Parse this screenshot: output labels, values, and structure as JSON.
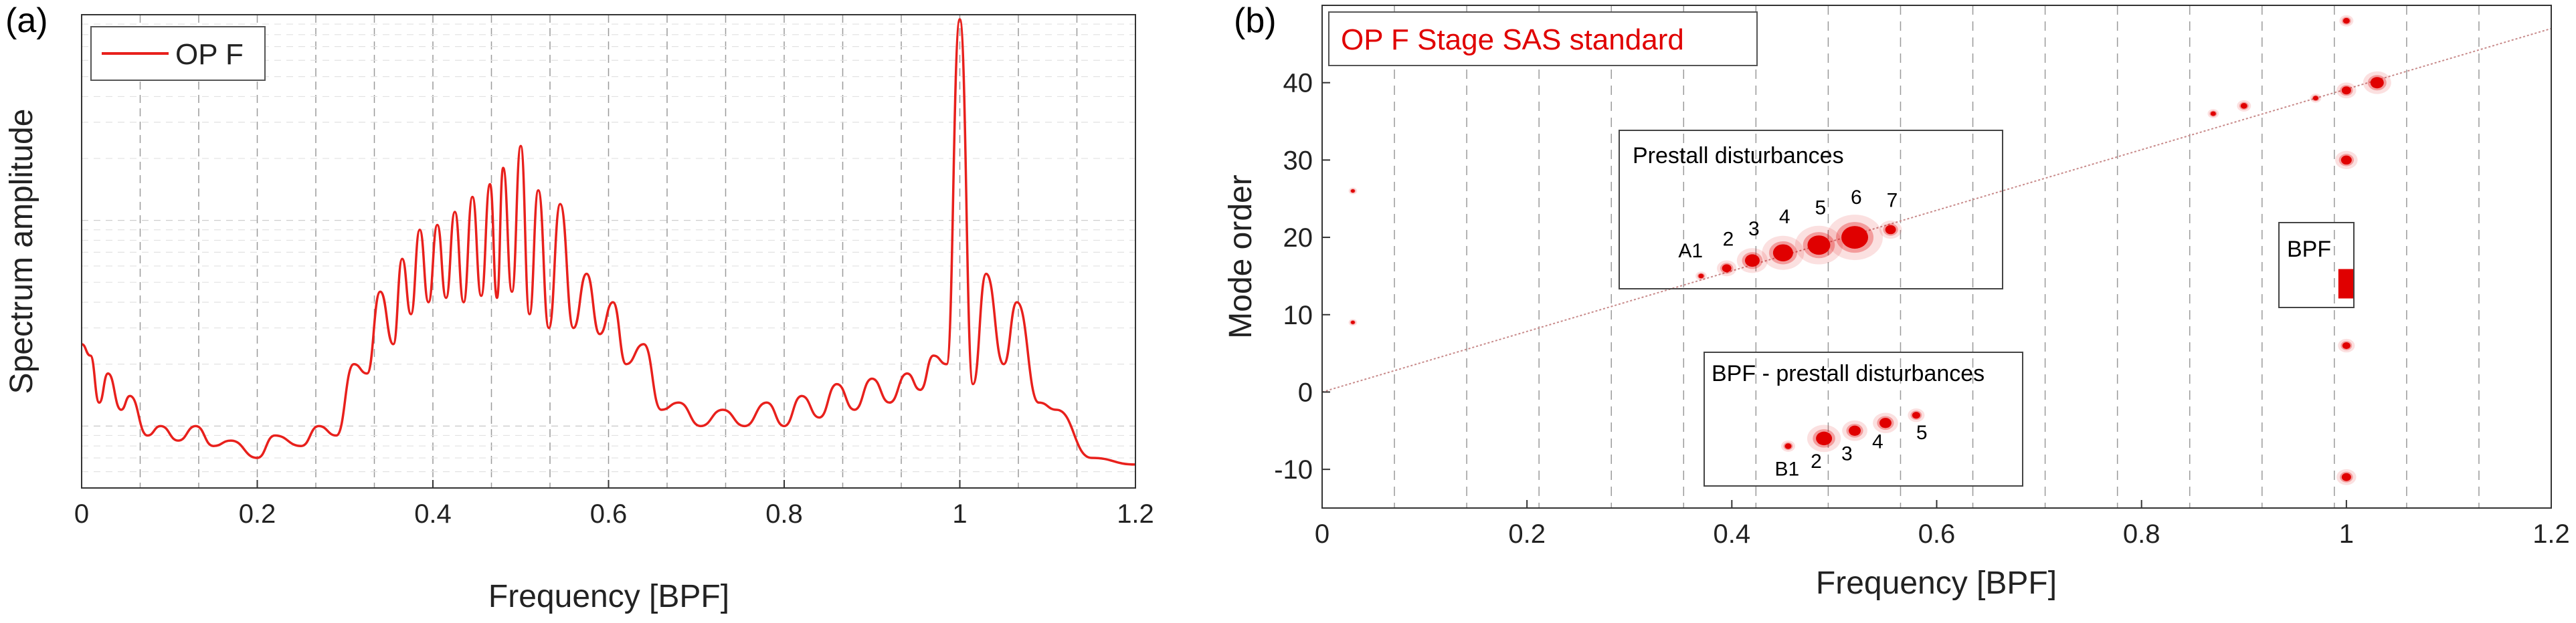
{
  "colors": {
    "series": "#e8201c",
    "mode_marker": "#e00000",
    "grid": "#b8b8b8",
    "axis": "#333333"
  },
  "chart_data": [
    {
      "panel_label": "(a)",
      "type": "line",
      "xlabel": "Frequency [BPF]",
      "ylabel": "Spectrum amplitude",
      "xlim": [
        0,
        1.2
      ],
      "yscale": "log",
      "ylim": [
        0.05,
        10
      ],
      "xticks": [
        "0",
        "0.2",
        "0.4",
        "0.6",
        "0.8",
        "1",
        "1.2"
      ],
      "grid": true,
      "legend": {
        "position": "top-left",
        "entries": [
          "OP F"
        ]
      },
      "series": [
        {
          "name": "OP F",
          "peaks": [
            {
              "x": 0.01,
              "y": 0.22
            },
            {
              "x": 0.03,
              "y": 0.18
            },
            {
              "x": 0.055,
              "y": 0.14
            },
            {
              "x": 0.09,
              "y": 0.1
            },
            {
              "x": 0.13,
              "y": 0.1
            },
            {
              "x": 0.17,
              "y": 0.085
            },
            {
              "x": 0.22,
              "y": 0.09
            },
            {
              "x": 0.27,
              "y": 0.1
            },
            {
              "x": 0.31,
              "y": 0.2
            },
            {
              "x": 0.34,
              "y": 0.45
            },
            {
              "x": 0.365,
              "y": 0.65
            },
            {
              "x": 0.385,
              "y": 0.9
            },
            {
              "x": 0.405,
              "y": 0.95
            },
            {
              "x": 0.425,
              "y": 1.1
            },
            {
              "x": 0.445,
              "y": 1.3
            },
            {
              "x": 0.465,
              "y": 1.5
            },
            {
              "x": 0.48,
              "y": 1.8
            },
            {
              "x": 0.5,
              "y": 2.3
            },
            {
              "x": 0.52,
              "y": 1.4
            },
            {
              "x": 0.545,
              "y": 1.2
            },
            {
              "x": 0.575,
              "y": 0.55
            },
            {
              "x": 0.605,
              "y": 0.4
            },
            {
              "x": 0.64,
              "y": 0.25
            },
            {
              "x": 0.68,
              "y": 0.13
            },
            {
              "x": 0.73,
              "y": 0.12
            },
            {
              "x": 0.78,
              "y": 0.13
            },
            {
              "x": 0.82,
              "y": 0.14
            },
            {
              "x": 0.86,
              "y": 0.16
            },
            {
              "x": 0.9,
              "y": 0.17
            },
            {
              "x": 0.94,
              "y": 0.18
            },
            {
              "x": 0.97,
              "y": 0.22
            },
            {
              "x": 1.0,
              "y": 9.5
            },
            {
              "x": 1.03,
              "y": 0.55
            },
            {
              "x": 1.065,
              "y": 0.4
            },
            {
              "x": 1.11,
              "y": 0.12
            },
            {
              "x": 1.2,
              "y": 0.065
            }
          ],
          "troughs": [
            {
              "x": 0.0,
              "y": 0.25
            },
            {
              "x": 0.02,
              "y": 0.13
            },
            {
              "x": 0.045,
              "y": 0.12
            },
            {
              "x": 0.075,
              "y": 0.09
            },
            {
              "x": 0.11,
              "y": 0.085
            },
            {
              "x": 0.15,
              "y": 0.08
            },
            {
              "x": 0.2,
              "y": 0.07
            },
            {
              "x": 0.25,
              "y": 0.08
            },
            {
              "x": 0.29,
              "y": 0.09
            },
            {
              "x": 0.325,
              "y": 0.18
            },
            {
              "x": 0.355,
              "y": 0.25
            },
            {
              "x": 0.375,
              "y": 0.35
            },
            {
              "x": 0.395,
              "y": 0.4
            },
            {
              "x": 0.415,
              "y": 0.42
            },
            {
              "x": 0.435,
              "y": 0.4
            },
            {
              "x": 0.455,
              "y": 0.43
            },
            {
              "x": 0.473,
              "y": 0.42
            },
            {
              "x": 0.49,
              "y": 0.45
            },
            {
              "x": 0.51,
              "y": 0.35
            },
            {
              "x": 0.532,
              "y": 0.3
            },
            {
              "x": 0.56,
              "y": 0.3
            },
            {
              "x": 0.59,
              "y": 0.28
            },
            {
              "x": 0.62,
              "y": 0.2
            },
            {
              "x": 0.66,
              "y": 0.12
            },
            {
              "x": 0.705,
              "y": 0.1
            },
            {
              "x": 0.755,
              "y": 0.1
            },
            {
              "x": 0.8,
              "y": 0.1
            },
            {
              "x": 0.84,
              "y": 0.11
            },
            {
              "x": 0.88,
              "y": 0.12
            },
            {
              "x": 0.92,
              "y": 0.13
            },
            {
              "x": 0.955,
              "y": 0.15
            },
            {
              "x": 0.985,
              "y": 0.2
            },
            {
              "x": 1.015,
              "y": 0.16
            },
            {
              "x": 1.05,
              "y": 0.2
            },
            {
              "x": 1.09,
              "y": 0.13
            },
            {
              "x": 1.15,
              "y": 0.07
            }
          ]
        }
      ]
    },
    {
      "panel_label": "(b)",
      "type": "scatter",
      "xlabel": "Frequency [BPF]",
      "ylabel": "Mode order",
      "xlim": [
        0,
        1.2
      ],
      "ylim": [
        -15,
        50
      ],
      "xticks": [
        "0",
        "0.2",
        "0.4",
        "0.6",
        "0.8",
        "1",
        "1.2"
      ],
      "yticks": [
        "-10",
        "0",
        "10",
        "20",
        "30",
        "40"
      ],
      "grid": true,
      "legend": {
        "position": "top-left",
        "entries": [
          "OP F Stage SAS standard"
        ]
      },
      "reference_line": {
        "x": [
          0,
          1.2
        ],
        "y": [
          0,
          47
        ]
      },
      "annotations": [
        {
          "title": "Prestall disturbances",
          "labels": [
            "A1",
            "2",
            "3",
            "4",
            "5",
            "6",
            "7"
          ],
          "points": [
            {
              "x": 0.37,
              "y": 15
            },
            {
              "x": 0.395,
              "y": 16
            },
            {
              "x": 0.42,
              "y": 17
            },
            {
              "x": 0.45,
              "y": 18
            },
            {
              "x": 0.485,
              "y": 19
            },
            {
              "x": 0.52,
              "y": 20
            },
            {
              "x": 0.555,
              "y": 21
            }
          ]
        },
        {
          "title": "BPF - prestall disturbances",
          "labels": [
            "B1",
            "2",
            "3",
            "4",
            "5"
          ],
          "points": [
            {
              "x": 0.455,
              "y": -7
            },
            {
              "x": 0.49,
              "y": -6
            },
            {
              "x": 0.52,
              "y": -5
            },
            {
              "x": 0.55,
              "y": -4
            },
            {
              "x": 0.58,
              "y": -3
            }
          ]
        },
        {
          "title": "BPF",
          "labels": [],
          "points": [
            {
              "x": 1.0,
              "y": 14
            }
          ]
        }
      ],
      "other_points": [
        {
          "x": 1.0,
          "y": 48
        },
        {
          "x": 1.0,
          "y": 39
        },
        {
          "x": 1.03,
          "y": 40
        },
        {
          "x": 1.0,
          "y": 30
        },
        {
          "x": 1.0,
          "y": 6
        },
        {
          "x": 1.0,
          "y": -11
        },
        {
          "x": 0.03,
          "y": 9
        },
        {
          "x": 0.03,
          "y": 26
        },
        {
          "x": 0.97,
          "y": 38
        },
        {
          "x": 0.9,
          "y": 37
        },
        {
          "x": 0.87,
          "y": 36
        }
      ]
    }
  ]
}
